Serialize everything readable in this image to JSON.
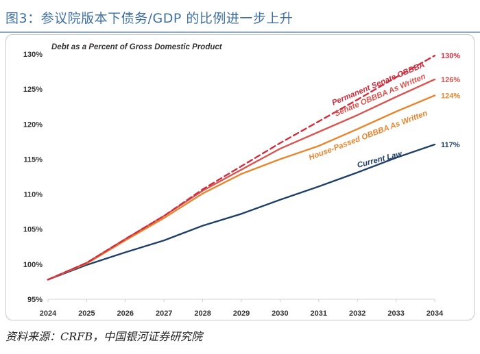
{
  "figure_title": "图3：参议院版本下债务/GDP 的比例进一步上升",
  "source": "资料来源：CRFB，中国银河证券研究院",
  "chart_data": {
    "type": "line",
    "title": "Debt as a Percent of Gross Domestic Product",
    "xlabel": "",
    "ylabel": "",
    "x": [
      2024,
      2025,
      2026,
      2027,
      2028,
      2029,
      2030,
      2031,
      2032,
      2033,
      2034
    ],
    "x_tick_labels": [
      "2024",
      "2025",
      "2026",
      "2027",
      "2028",
      "2029",
      "2030",
      "2031",
      "2032",
      "2033",
      "2034"
    ],
    "y_tick_values": [
      95,
      100,
      105,
      110,
      115,
      120,
      125,
      130
    ],
    "y_tick_labels": [
      "95%",
      "100%",
      "105%",
      "110%",
      "115%",
      "120%",
      "125%",
      "130%"
    ],
    "ylim": [
      95,
      130.5
    ],
    "grid": false,
    "series": [
      {
        "name": "Current Law",
        "color": "#1f3f68",
        "dashed": false,
        "values": [
          97.8,
          99.9,
          101.7,
          103.4,
          105.5,
          107.2,
          109.2,
          111.1,
          113.1,
          115.2,
          117.1
        ],
        "end_label": "117%"
      },
      {
        "name": "House-Passed OBBBA As Written",
        "color": "#e8852f",
        "dashed": false,
        "values": [
          97.8,
          100.1,
          103.4,
          106.6,
          110.1,
          112.9,
          115.0,
          116.9,
          119.3,
          121.8,
          124.1
        ],
        "end_label": "124%"
      },
      {
        "name": "Senate OBBBA As Written",
        "color": "#d9534f",
        "dashed": false,
        "values": [
          97.8,
          100.2,
          103.6,
          106.9,
          110.5,
          113.5,
          116.5,
          118.9,
          121.3,
          123.9,
          126.4
        ],
        "end_label": "126%"
      },
      {
        "name": "Permanent Senate OBBBA",
        "color": "#cf2f3f",
        "dashed": true,
        "values": [
          97.8,
          100.2,
          103.6,
          106.9,
          110.7,
          114.0,
          117.3,
          120.4,
          123.5,
          126.7,
          129.8
        ],
        "end_label": "130%"
      }
    ]
  }
}
